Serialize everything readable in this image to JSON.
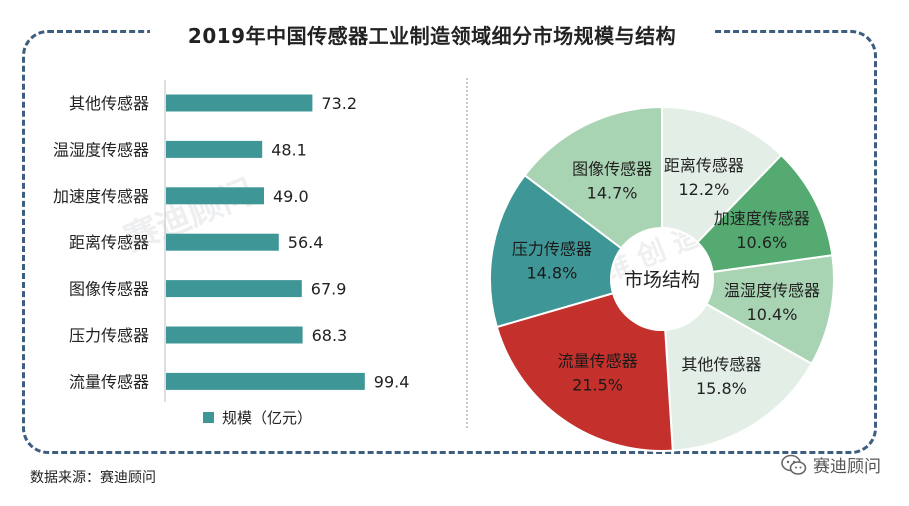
{
  "title": "2019年中国传感器工业制造领域细分市场规模与结构",
  "source": "数据来源：赛迪顾问",
  "brand": "赛迪顾问",
  "watermark": "赛迪顾问",
  "watermark_sub": "思 维 创 造 世 界",
  "chart_data": [
    {
      "type": "bar",
      "orientation": "horizontal",
      "categories": [
        "其他传感器",
        "温湿度传感器",
        "加速度传感器",
        "距离传感器",
        "图像传感器",
        "压力传感器",
        "流量传感器"
      ],
      "series": [
        {
          "name": "规模（亿元）",
          "values": [
            73.2,
            48.1,
            49.0,
            56.4,
            67.9,
            68.3,
            99.4
          ]
        }
      ],
      "value_labels": [
        "73.2",
        "48.1",
        "49.0",
        "56.4",
        "67.9",
        "68.3",
        "99.4"
      ],
      "color": "#3f9696",
      "legend": "bottom",
      "grid": false
    },
    {
      "type": "pie",
      "donut": true,
      "center_label": "市场结构",
      "slices": [
        {
          "label": "距离传感器",
          "value": 12.2,
          "value_label": "12.2%",
          "color": "#e3efe6"
        },
        {
          "label": "加速度传感器",
          "value": 10.6,
          "value_label": "10.6%",
          "color": "#54aa70"
        },
        {
          "label": "温湿度传感器",
          "value": 10.4,
          "value_label": "10.4%",
          "color": "#a9d4b3"
        },
        {
          "label": "其他传感器",
          "value": 15.8,
          "value_label": "15.8%",
          "color": "#e3efe6"
        },
        {
          "label": "流量传感器",
          "value": 21.5,
          "value_label": "21.5%",
          "color": "#c4302b"
        },
        {
          "label": "压力传感器",
          "value": 14.8,
          "value_label": "14.8%",
          "color": "#3f9696"
        },
        {
          "label": "图像传感器",
          "value": 14.7,
          "value_label": "14.7%",
          "color": "#a9d4b3"
        }
      ]
    }
  ]
}
